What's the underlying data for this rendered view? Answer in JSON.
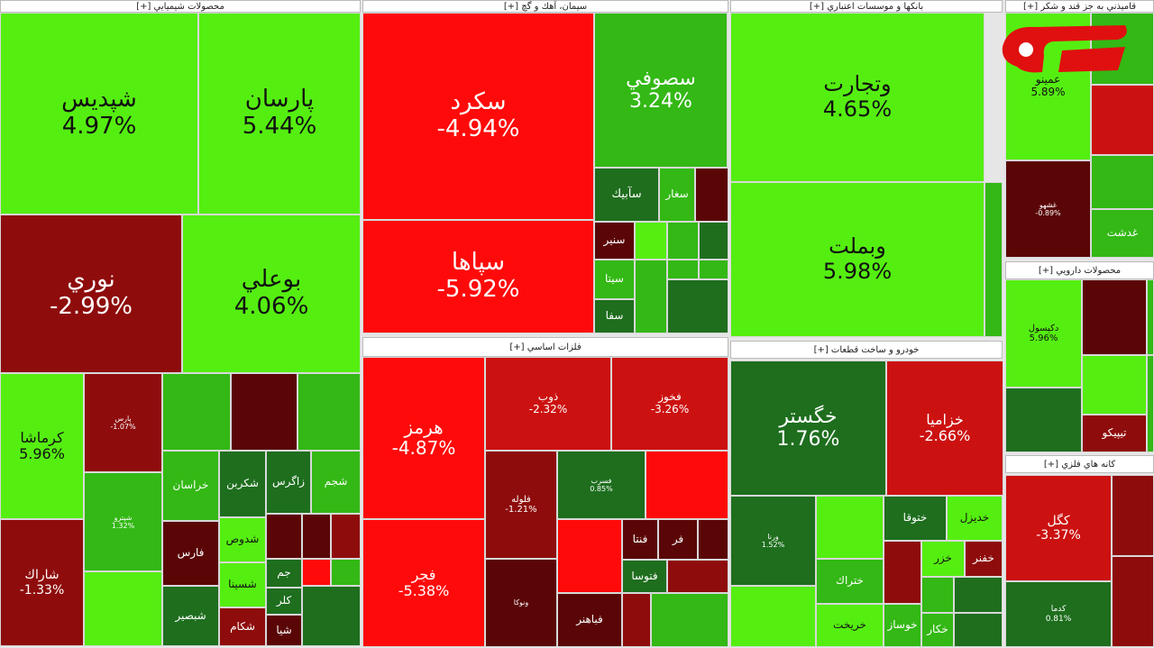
{
  "sectors": [
    {
      "title": "محصولات شيميايي [+]",
      "tiles": [
        {
          "name": "شپديس",
          "change": "4.97%"
        },
        {
          "name": "پارسان",
          "change": "5.44%"
        },
        {
          "name": "نوري",
          "change": "-2.99%"
        },
        {
          "name": "بوعلي",
          "change": "4.06%"
        },
        {
          "name": "كرماشا",
          "change": "5.96%"
        },
        {
          "name": "شاراك",
          "change": "-1.33%"
        },
        {
          "name": "پارس",
          "change": "-1.07%"
        },
        {
          "name": "شپترو",
          "change": "1.32%"
        },
        {
          "name": "خراسان"
        },
        {
          "name": "شكربن"
        },
        {
          "name": "زاگرس"
        },
        {
          "name": "شجم"
        },
        {
          "name": "فارس"
        },
        {
          "name": "شدوص"
        },
        {
          "name": "شبصير"
        },
        {
          "name": "شسينا"
        },
        {
          "name": "شكام"
        },
        {
          "name": "جم"
        },
        {
          "name": "كلر"
        },
        {
          "name": "شيا"
        }
      ]
    },
    {
      "title": "سيمان، آهك و گچ [+]",
      "tiles": [
        {
          "name": "سكرد",
          "change": "-4.94%"
        },
        {
          "name": "سپاها",
          "change": "-5.92%"
        },
        {
          "name": "سصوفي",
          "change": "3.24%"
        },
        {
          "name": "سآبيك"
        },
        {
          "name": "سغار"
        },
        {
          "name": "سنير"
        },
        {
          "name": "سيتا"
        },
        {
          "name": "سفا"
        }
      ]
    },
    {
      "title": "فلزات اساسي [+]",
      "tiles": [
        {
          "name": "هرمز",
          "change": "-4.87%"
        },
        {
          "name": "فجر",
          "change": "-5.38%"
        },
        {
          "name": "ذوب",
          "change": "-2.32%"
        },
        {
          "name": "فخوز",
          "change": "-3.26%"
        },
        {
          "name": "فلوله",
          "change": "-1.21%"
        },
        {
          "name": "فسرب",
          "change": "0.85%"
        },
        {
          "name": "فنتا"
        },
        {
          "name": "فر"
        },
        {
          "name": "فتوسا"
        },
        {
          "name": "ونوكا"
        },
        {
          "name": "فباهنر"
        }
      ]
    },
    {
      "title": "بانكها و موسسات اعتباري [+]",
      "tiles": [
        {
          "name": "وتجارت",
          "change": "4.65%"
        },
        {
          "name": "وبملت",
          "change": "5.98%"
        }
      ]
    },
    {
      "title": "خودرو و ساخت قطعات [+]",
      "tiles": [
        {
          "name": "خگستر",
          "change": "1.76%"
        },
        {
          "name": "خزاميا",
          "change": "-2.66%"
        },
        {
          "name": "ورنا",
          "change": "1.52%"
        },
        {
          "name": "ختوقا"
        },
        {
          "name": "خديزل"
        },
        {
          "name": "خزر"
        },
        {
          "name": "خفنر"
        },
        {
          "name": "ختراك"
        },
        {
          "name": "خريخت"
        },
        {
          "name": "خوساز"
        },
        {
          "name": "خكار"
        }
      ]
    },
    {
      "title": "قاميذني به جز قند و شكر [+]",
      "tiles": [
        {
          "name": "عمينو",
          "change": "5.89%"
        },
        {
          "name": "غشهو",
          "change": "-0.89%"
        },
        {
          "name": "غدشت"
        }
      ]
    },
    {
      "title": "محصولات دارويي [+]",
      "tiles": [
        {
          "name": "دكپسول",
          "change": "5.96%"
        },
        {
          "name": "تيپيكو"
        }
      ]
    },
    {
      "title": "كانه هاي فلزي [+]",
      "tiles": [
        {
          "name": "كگل",
          "change": "-3.37%"
        },
        {
          "name": "كدما",
          "change": "0.81%"
        }
      ]
    }
  ]
}
